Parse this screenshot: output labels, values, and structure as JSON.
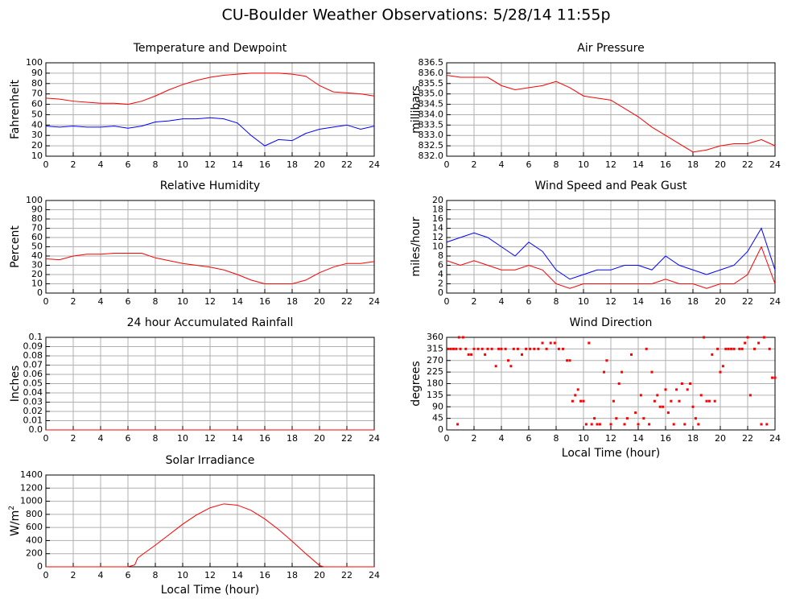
{
  "title": "CU-Boulder Weather Observations: 5/28/14 11:55p",
  "chart_data": [
    {
      "type": "line",
      "title": "Temperature and Dewpoint",
      "ylabel": "Fahrenheit",
      "xlim": [
        0,
        24
      ],
      "xticks": [
        0,
        2,
        4,
        6,
        8,
        10,
        12,
        14,
        16,
        18,
        20,
        22,
        24
      ],
      "ylim": [
        10,
        100
      ],
      "yticks": [
        10,
        20,
        30,
        40,
        50,
        60,
        70,
        80,
        90,
        100
      ],
      "grid": true,
      "series": [
        {
          "color": "#ff0000",
          "x": [
            0,
            1,
            2,
            3,
            4,
            5,
            6,
            7,
            8,
            9,
            10,
            11,
            12,
            13,
            14,
            15,
            16,
            17,
            18,
            19,
            20,
            21,
            22,
            23,
            24
          ],
          "values": [
            66,
            65,
            63,
            62,
            61,
            61,
            60,
            63,
            68,
            74,
            79,
            83,
            86,
            88,
            89,
            90,
            90,
            90,
            89,
            87,
            78,
            72,
            71,
            70,
            68
          ]
        },
        {
          "color": "#0000ff",
          "x": [
            0,
            1,
            2,
            3,
            4,
            5,
            6,
            7,
            8,
            9,
            10,
            11,
            12,
            13,
            14,
            15,
            16,
            17,
            18,
            19,
            20,
            21,
            22,
            23,
            24
          ],
          "values": [
            39,
            38,
            39,
            38,
            38,
            39,
            37,
            39,
            43,
            44,
            46,
            46,
            47,
            46,
            42,
            30,
            20,
            26,
            25,
            32,
            36,
            38,
            40,
            36,
            39
          ]
        }
      ]
    },
    {
      "type": "line",
      "title": "Air Pressure",
      "ylabel": "millibars",
      "xlim": [
        0,
        24
      ],
      "xticks": [
        0,
        2,
        4,
        6,
        8,
        10,
        12,
        14,
        16,
        18,
        20,
        22,
        24
      ],
      "ylim": [
        832,
        836.5
      ],
      "yticks": [
        {
          "value": 832,
          "label": "832.0"
        },
        832.5,
        {
          "value": 833,
          "label": "833.0"
        },
        833.5,
        {
          "value": 834,
          "label": "834.0"
        },
        834.5,
        {
          "value": 835,
          "label": "835.0"
        },
        835.5,
        {
          "value": 836,
          "label": "836.0"
        },
        836.5
      ],
      "grid": true,
      "series": [
        {
          "color": "#ff0000",
          "x": [
            0,
            1,
            2,
            3,
            4,
            5,
            6,
            7,
            8,
            9,
            10,
            11,
            12,
            13,
            14,
            15,
            16,
            17,
            18,
            19,
            20,
            21,
            22,
            23,
            24
          ],
          "values": [
            835.9,
            835.8,
            835.8,
            835.8,
            835.4,
            835.2,
            835.3,
            835.4,
            835.6,
            835.3,
            834.9,
            834.8,
            834.7,
            834.3,
            833.9,
            833.4,
            833.0,
            832.6,
            832.2,
            832.3,
            832.5,
            832.6,
            832.6,
            832.8,
            832.5
          ]
        }
      ]
    },
    {
      "type": "line",
      "title": "Relative Humidity",
      "ylabel": "Percent",
      "xlim": [
        0,
        24
      ],
      "xticks": [
        0,
        2,
        4,
        6,
        8,
        10,
        12,
        14,
        16,
        18,
        20,
        22,
        24
      ],
      "ylim": [
        0,
        100
      ],
      "yticks": [
        0,
        10,
        20,
        30,
        40,
        50,
        60,
        70,
        80,
        90,
        100
      ],
      "grid": true,
      "series": [
        {
          "color": "#ff0000",
          "x": [
            0,
            1,
            2,
            3,
            4,
            5,
            6,
            7,
            8,
            9,
            10,
            11,
            12,
            13,
            14,
            15,
            16,
            17,
            18,
            19,
            20,
            21,
            22,
            23,
            24
          ],
          "values": [
            37,
            36,
            40,
            42,
            42,
            43,
            43,
            43,
            38,
            35,
            32,
            30,
            28,
            25,
            20,
            14,
            10,
            10,
            10,
            14,
            22,
            28,
            32,
            32,
            34
          ]
        }
      ]
    },
    {
      "type": "line",
      "title": "Wind Speed and Peak Gust",
      "ylabel": "miles/hour",
      "xlim": [
        0,
        24
      ],
      "xticks": [
        0,
        2,
        4,
        6,
        8,
        10,
        12,
        14,
        16,
        18,
        20,
        22,
        24
      ],
      "ylim": [
        0,
        20
      ],
      "yticks": [
        0,
        2,
        4,
        6,
        8,
        10,
        12,
        14,
        16,
        18,
        20
      ],
      "grid": true,
      "series": [
        {
          "color": "#0000ff",
          "x": [
            0,
            1,
            2,
            3,
            4,
            5,
            6,
            7,
            8,
            9,
            10,
            11,
            12,
            13,
            14,
            15,
            16,
            17,
            18,
            19,
            20,
            21,
            22,
            23,
            24
          ],
          "values": [
            11,
            12,
            13,
            12,
            10,
            8,
            11,
            9,
            5,
            3,
            4,
            5,
            5,
            6,
            6,
            5,
            8,
            6,
            5,
            4,
            5,
            6,
            9,
            14,
            5
          ]
        },
        {
          "color": "#ff0000",
          "x": [
            0,
            1,
            2,
            3,
            4,
            5,
            6,
            7,
            8,
            9,
            10,
            11,
            12,
            13,
            14,
            15,
            16,
            17,
            18,
            19,
            20,
            21,
            22,
            23,
            24
          ],
          "values": [
            7,
            6,
            7,
            6,
            5,
            5,
            6,
            5,
            2,
            1,
            2,
            2,
            2,
            2,
            2,
            2,
            3,
            2,
            2,
            1,
            2,
            2,
            4,
            10,
            2
          ]
        }
      ]
    },
    {
      "type": "line",
      "title": "24 hour Accumulated Rainfall",
      "ylabel": "Inches",
      "xlim": [
        0,
        24
      ],
      "xticks": [
        0,
        2,
        4,
        6,
        8,
        10,
        12,
        14,
        16,
        18,
        20,
        22,
        24
      ],
      "ylim": [
        0,
        0.1
      ],
      "yticks": [
        {
          "value": 0,
          "label": "0.0"
        },
        0.01,
        0.02,
        0.03,
        0.04,
        0.05,
        0.06,
        0.07,
        0.08,
        0.09,
        0.1
      ],
      "grid": true,
      "series": [
        {
          "color": "#ff0000",
          "x": [
            0,
            24
          ],
          "values": [
            0,
            0
          ]
        }
      ]
    },
    {
      "type": "scatter",
      "title": "Wind Direction",
      "ylabel": "degrees",
      "xlabel": "Local Time (hour)",
      "xlim": [
        0,
        24
      ],
      "xticks": [
        0,
        2,
        4,
        6,
        8,
        10,
        12,
        14,
        16,
        18,
        20,
        22,
        24
      ],
      "ylim": [
        0,
        360
      ],
      "yticks": [
        0,
        45,
        90,
        135,
        180,
        225,
        270,
        315,
        360
      ],
      "grid": true,
      "series": [
        {
          "color": "#ff0000",
          "x": [
            0.1,
            0.3,
            0.5,
            0.7,
            0.8,
            0.9,
            1.0,
            1.2,
            1.4,
            1.6,
            1.8,
            2.0,
            2.3,
            2.6,
            2.8,
            3.0,
            3.3,
            3.6,
            3.8,
            4.0,
            4.3,
            4.5,
            4.7,
            4.9,
            5.2,
            5.5,
            5.8,
            6.1,
            6.4,
            6.7,
            7.0,
            7.3,
            7.6,
            7.9,
            8.2,
            8.5,
            8.8,
            9.0,
            9.2,
            9.4,
            9.6,
            9.8,
            10.0,
            10.2,
            10.4,
            10.6,
            10.8,
            11.0,
            11.2,
            11.5,
            11.7,
            12.0,
            12.2,
            12.4,
            12.6,
            12.8,
            13.0,
            13.2,
            13.5,
            13.8,
            14.0,
            14.2,
            14.4,
            14.6,
            14.8,
            15.0,
            15.2,
            15.4,
            15.6,
            15.8,
            16.0,
            16.2,
            16.4,
            16.6,
            16.8,
            17.0,
            17.2,
            17.4,
            17.6,
            17.8,
            18.0,
            18.2,
            18.4,
            18.6,
            18.8,
            19.0,
            19.2,
            19.4,
            19.6,
            19.8,
            20.0,
            20.2,
            20.4,
            20.6,
            20.8,
            21.0,
            21.4,
            21.6,
            21.8,
            22.0,
            22.2,
            22.5,
            22.8,
            23.0,
            23.2,
            23.4,
            23.6,
            23.8,
            24.0
          ],
          "values": [
            315,
            315,
            315,
            315,
            22,
            360,
            315,
            360,
            315,
            293,
            293,
            315,
            315,
            315,
            293,
            315,
            315,
            248,
            315,
            315,
            315,
            270,
            248,
            315,
            315,
            293,
            315,
            315,
            315,
            315,
            338,
            315,
            338,
            338,
            315,
            315,
            270,
            270,
            112,
            135,
            157,
            112,
            112,
            22,
            338,
            22,
            45,
            22,
            22,
            225,
            270,
            22,
            112,
            45,
            180,
            225,
            22,
            45,
            293,
            67,
            22,
            135,
            45,
            315,
            22,
            225,
            112,
            135,
            90,
            90,
            157,
            67,
            112,
            22,
            157,
            112,
            180,
            22,
            157,
            180,
            90,
            45,
            22,
            135,
            360,
            112,
            112,
            293,
            112,
            315,
            225,
            248,
            315,
            315,
            315,
            315,
            315,
            315,
            338,
            360,
            135,
            315,
            338,
            22,
            360,
            22,
            315,
            203,
            203
          ]
        }
      ]
    },
    {
      "type": "line",
      "title": "Solar Irradiance",
      "ylabel": "W/m",
      "ylabel_superscript": "2",
      "xlabel": "Local Time (hour)",
      "xlim": [
        0,
        24
      ],
      "xticks": [
        0,
        2,
        4,
        6,
        8,
        10,
        12,
        14,
        16,
        18,
        20,
        22,
        24
      ],
      "ylim": [
        0,
        1400
      ],
      "yticks": [
        0,
        200,
        400,
        600,
        800,
        1000,
        1200,
        1400
      ],
      "grid": true,
      "series": [
        {
          "color": "#ff0000",
          "x": [
            0,
            6,
            6.5,
            6.7,
            7,
            8,
            9,
            10,
            11,
            12,
            13,
            14,
            15,
            16,
            17,
            18,
            19,
            20,
            20.3,
            24
          ],
          "values": [
            0,
            0,
            30,
            130,
            180,
            330,
            490,
            650,
            790,
            900,
            960,
            940,
            860,
            730,
            570,
            390,
            200,
            20,
            0,
            0
          ]
        }
      ]
    }
  ]
}
